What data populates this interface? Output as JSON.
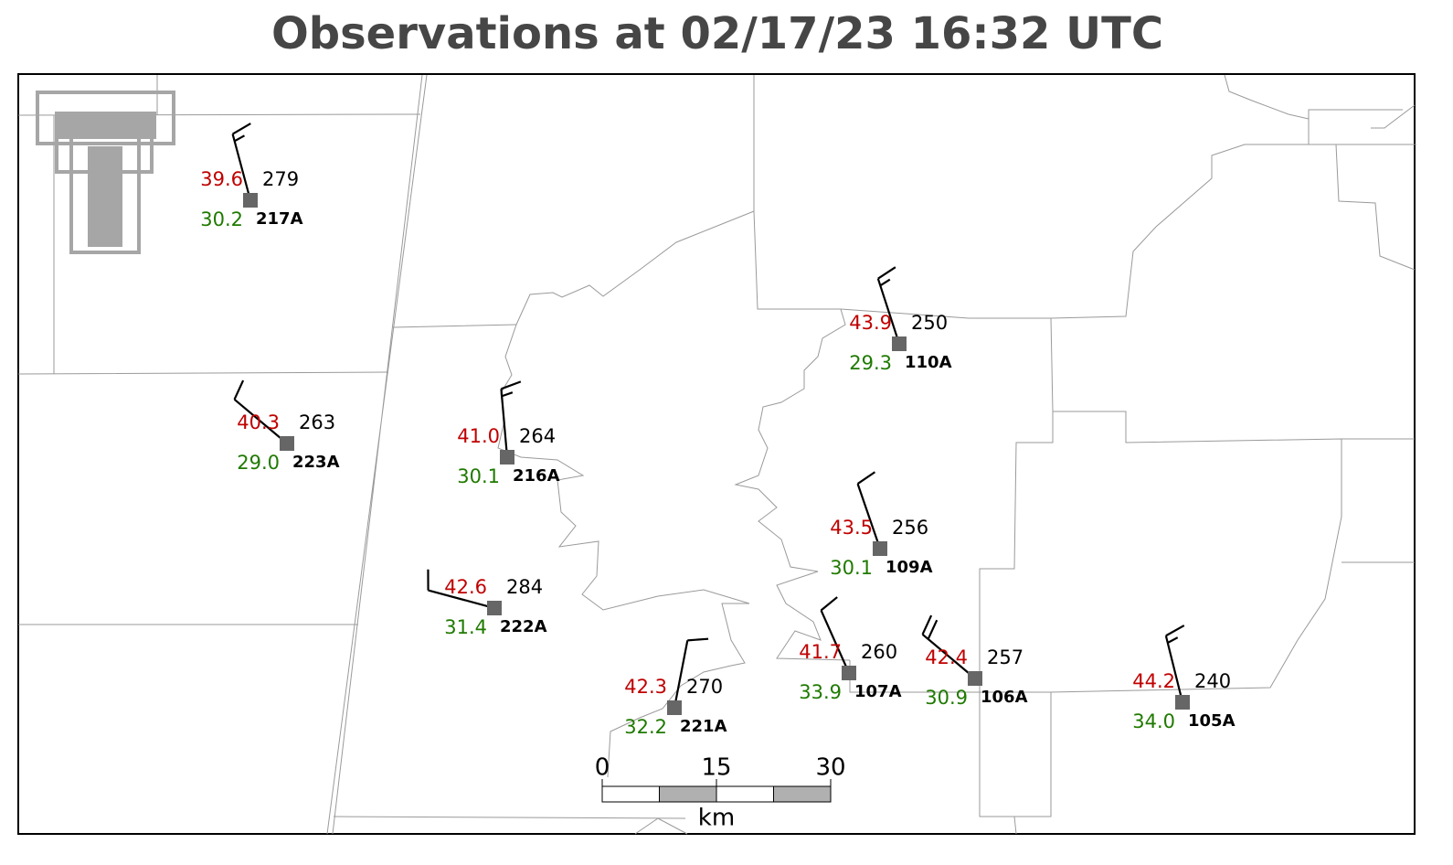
{
  "title": "Observations at 02/17/23 16:32 UTC",
  "stations": [
    {
      "id": "217A",
      "temperature": 39.6,
      "dewpoint": 30.2,
      "pressure": 279,
      "wind_direction": 345,
      "wind_speed": 15
    },
    {
      "id": "223A",
      "temperature": 40.3,
      "dewpoint": {
        "value": 29,
        "label": "29.0"
      },
      "pressure": 263,
      "wind_direction": 310,
      "wind_speed": 10
    },
    {
      "id": "216A",
      "temperature": {
        "value": 41,
        "label": "41.0"
      },
      "dewpoint": 30.1,
      "pressure": 264,
      "wind_direction": 355,
      "wind_speed": 15
    },
    {
      "id": "222A",
      "temperature": 42.6,
      "dewpoint": 31.4,
      "pressure": 284,
      "wind_direction": 285,
      "wind_speed": 10
    },
    {
      "id": "110A",
      "temperature": 43.9,
      "dewpoint": 29.3,
      "pressure": 250,
      "wind_direction": 342,
      "wind_speed": 15
    },
    {
      "id": "109A",
      "temperature": 43.5,
      "dewpoint": 30.1,
      "pressure": 256,
      "wind_direction": 341,
      "wind_speed": 10
    },
    {
      "id": "221A",
      "temperature": 42.3,
      "dewpoint": 32.2,
      "pressure": 270,
      "wind_direction": 11,
      "wind_speed": 10
    },
    {
      "id": "107A",
      "temperature": 41.7,
      "dewpoint": 33.9,
      "pressure": 260,
      "wind_direction": 336,
      "wind_speed": 10
    },
    {
      "id": "106A",
      "temperature": 42.4,
      "dewpoint": 30.9,
      "pressure": 257,
      "wind_direction": 310,
      "wind_speed": 20
    },
    {
      "id": "105A",
      "temperature": 44.2,
      "dewpoint": {
        "value": 34,
        "label": "34.0"
      },
      "pressure": 240,
      "wind_direction": 346,
      "wind_speed": 15
    }
  ],
  "scale_bar": {
    "ticks": [
      0,
      15,
      30
    ],
    "unit": "km"
  }
}
